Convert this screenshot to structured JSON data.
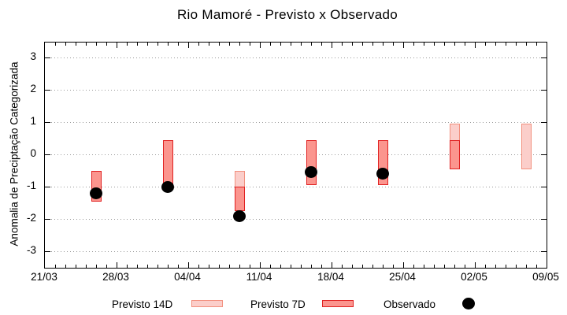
{
  "title": "Rio Mamoré - Previsto x Observado",
  "chart_data": {
    "type": "bar",
    "title": "Rio Mamoré - Previsto x Observado",
    "xlabel": "",
    "ylabel": "Anomalia de Preciptação Categorizada",
    "ylim": [
      -3.5,
      3.5
    ],
    "yticks": [
      3,
      2,
      1,
      0,
      -1,
      -2,
      -3
    ],
    "grid": "horizontal dotted gray",
    "x_axis": {
      "tick_labels": [
        "21/03",
        "28/03",
        "04/04",
        "11/04",
        "18/04",
        "25/04",
        "02/05",
        "09/05"
      ],
      "days_total": 49,
      "minor_tick_every_days": 1,
      "major_tick_every_days": 7
    },
    "series": [
      {
        "name": "Previsto 14D",
        "type": "range-bar",
        "fill": "#fbceca",
        "border": "#f2907e"
      },
      {
        "name": "Previsto 7D",
        "type": "range-bar",
        "fill": "#fb958e",
        "border": "#e02020"
      },
      {
        "name": "Observado",
        "type": "scatter-dot",
        "color": "#000000"
      }
    ],
    "bars": [
      {
        "date": "26/03",
        "day_index": 5,
        "previsto14": null,
        "previsto7": [
          -0.5,
          -1.45
        ],
        "observado": -1.2
      },
      {
        "date": "02/04",
        "day_index": 12,
        "previsto14": null,
        "previsto7": [
          0.45,
          -0.95
        ],
        "observado": -1.0
      },
      {
        "date": "09/04",
        "day_index": 19,
        "previsto14": [
          -0.5,
          -1.75
        ],
        "previsto7": [
          -1.0,
          -1.75
        ],
        "observado": -1.9
      },
      {
        "date": "16/04",
        "day_index": 26,
        "previsto14": null,
        "previsto7": [
          0.45,
          -0.95
        ],
        "observado": -0.55
      },
      {
        "date": "23/04",
        "day_index": 33,
        "previsto14": null,
        "previsto7": [
          0.45,
          -0.95
        ],
        "observado": -0.6
      },
      {
        "date": "30/04",
        "day_index": 40,
        "previsto14": [
          0.95,
          -0.45
        ],
        "previsto7": [
          0.45,
          -0.45
        ],
        "observado": null
      },
      {
        "date": "07/05",
        "day_index": 47,
        "previsto14": [
          0.95,
          -0.45
        ],
        "previsto7": null,
        "observado": null
      }
    ],
    "legend": {
      "position": "bottom",
      "entries": [
        {
          "label": "Previsto 14D",
          "marker": "box-light-pink"
        },
        {
          "label": "Previsto 7D",
          "marker": "box-red"
        },
        {
          "label": "Observado",
          "marker": "black-dot"
        }
      ]
    }
  },
  "colors": {
    "background": "#ffffff",
    "axis": "#000000",
    "grid": "#999999",
    "previsto14_fill": "#fbceca",
    "previsto14_border": "#f2907e",
    "previsto7_fill": "#fb958e",
    "previsto7_border": "#e02020",
    "observado": "#000000"
  }
}
